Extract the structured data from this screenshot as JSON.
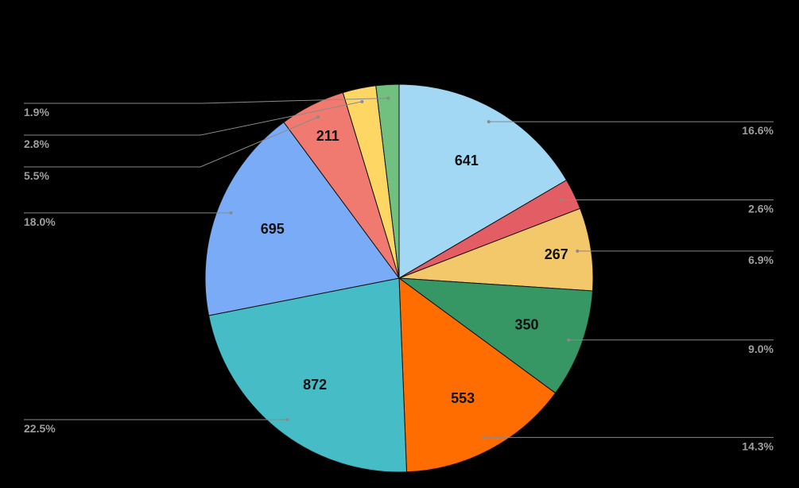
{
  "chart_data": {
    "type": "pie",
    "title": "",
    "start_angle_deg": 0,
    "direction": "clockwise",
    "slices": [
      {
        "value": 641,
        "percent_label": "16.6%",
        "color": "#a3d8f4"
      },
      {
        "value": 100,
        "percent_label": "2.6%",
        "color": "#e35d65"
      },
      {
        "value": 267,
        "percent_label": "6.9%",
        "color": "#f2c86a"
      },
      {
        "value": 350,
        "percent_label": "9.0%",
        "color": "#369664"
      },
      {
        "value": 553,
        "percent_label": "14.3%",
        "color": "#ff6d00"
      },
      {
        "value": 872,
        "percent_label": "22.5%",
        "color": "#46bcc6"
      },
      {
        "value": 695,
        "percent_label": "18.0%",
        "color": "#7aabf6"
      },
      {
        "value": 211,
        "percent_label": "5.5%",
        "color": "#f07a70"
      },
      {
        "value": 107,
        "percent_label": "2.8%",
        "color": "#fdd663"
      },
      {
        "value": 74,
        "percent_label": "1.9%",
        "color": "#72c080"
      }
    ],
    "value_labels_shown": [
      641,
      267,
      350,
      553,
      872,
      695,
      211
    ]
  }
}
